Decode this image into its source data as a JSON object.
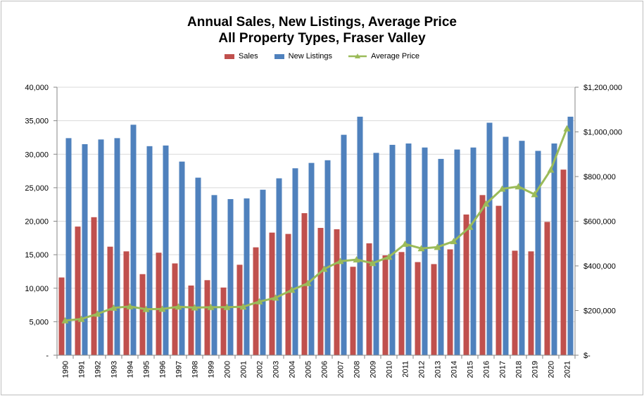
{
  "chart_data": {
    "type": "bar",
    "title": "Annual Sales, New Listings, Average Price",
    "subtitle": "All Property Types, Fraser Valley",
    "categories": [
      "1990",
      "1991",
      "1992",
      "1993",
      "1994",
      "1995",
      "1996",
      "1997",
      "1998",
      "1999",
      "2000",
      "2001",
      "2002",
      "2003",
      "2004",
      "2005",
      "2006",
      "2007",
      "2008",
      "2009",
      "2010",
      "2011",
      "2012",
      "2013",
      "2014",
      "2015",
      "2016",
      "2017",
      "2018",
      "2019",
      "2020",
      "2021"
    ],
    "series": [
      {
        "name": "Sales",
        "type": "bar",
        "axis": "left",
        "color": "#c0504d",
        "values": [
          11600,
          19200,
          20600,
          16200,
          15500,
          12100,
          15300,
          13700,
          10400,
          11200,
          10100,
          13500,
          16100,
          18300,
          18100,
          21200,
          19000,
          18800,
          13200,
          16700,
          14900,
          15400,
          13900,
          13600,
          15800,
          21000,
          23900,
          22300,
          15600,
          15500,
          19900,
          27700
        ]
      },
      {
        "name": "New Listings",
        "type": "bar",
        "axis": "left",
        "color": "#4f81bd",
        "values": [
          32400,
          31500,
          32200,
          32400,
          34400,
          31200,
          31300,
          28900,
          26500,
          23900,
          23300,
          23400,
          24700,
          26400,
          27900,
          28700,
          29100,
          32900,
          35600,
          30200,
          31400,
          31600,
          31000,
          29300,
          30700,
          31000,
          34700,
          32600,
          32000,
          30500,
          31600,
          35600
        ]
      },
      {
        "name": "Average Price",
        "type": "line",
        "axis": "right",
        "color": "#9bbb59",
        "values": [
          155000,
          162000,
          185000,
          212000,
          218000,
          206000,
          207000,
          217000,
          213000,
          215000,
          215000,
          217000,
          240000,
          257000,
          292000,
          322000,
          386000,
          421000,
          428000,
          412000,
          440000,
          498000,
          478000,
          484000,
          510000,
          574000,
          678000,
          745000,
          755000,
          720000,
          830000,
          1015000
        ]
      }
    ],
    "y_left": {
      "ylim": [
        0,
        40000
      ],
      "ticks": [
        "-",
        "5,000",
        "10,000",
        "15,000",
        "20,000",
        "25,000",
        "30,000",
        "35,000",
        "40,000"
      ]
    },
    "y_right": {
      "ylim": [
        0,
        1200000
      ],
      "ticks": [
        "$-",
        "$200,000",
        "$400,000",
        "$600,000",
        "$800,000",
        "$1,000,000",
        "$1,200,000"
      ]
    },
    "grid": true,
    "legend": "top-center"
  }
}
